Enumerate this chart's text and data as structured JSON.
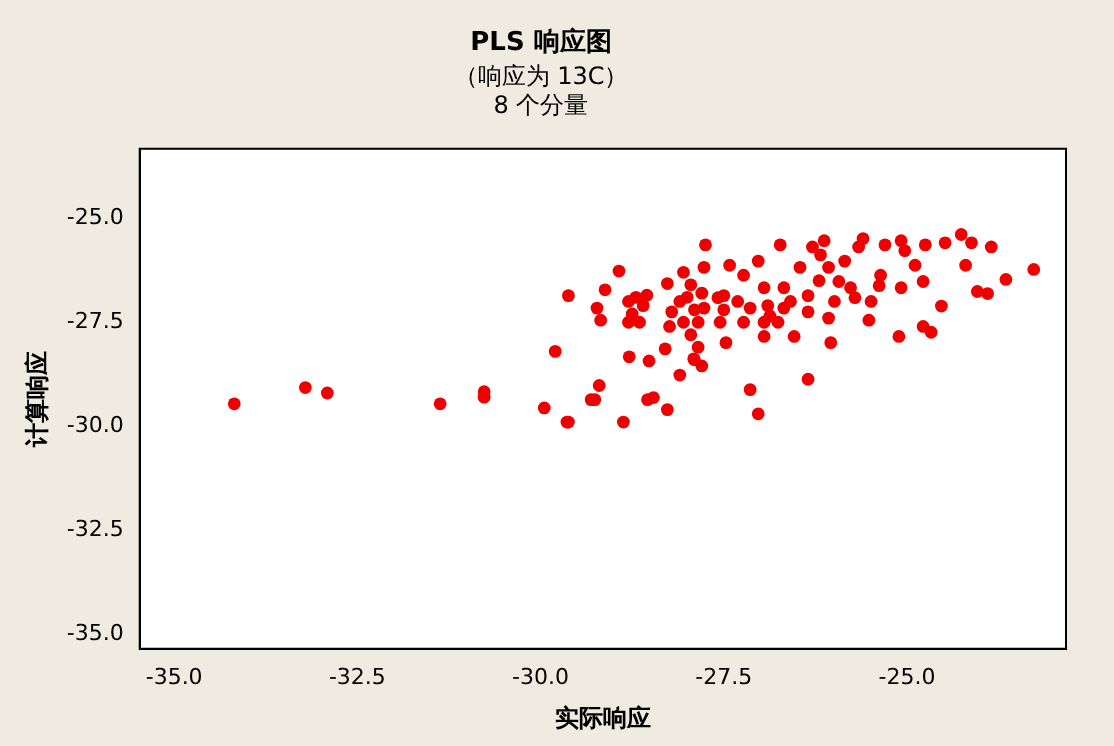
{
  "chart_data": {
    "type": "scatter",
    "title": "PLS 响应图",
    "subtitle": "（响应为 13C）\n8 个分量",
    "xlabel": "实际响应",
    "ylabel": "计算响应",
    "xlim": [
      -35.47,
      -22.83
    ],
    "ylim": [
      -35.35,
      -23.33
    ],
    "xticks": [
      {
        "value": -35,
        "label": "-35.0"
      },
      -32.5,
      {
        "value": -30,
        "label": "-30.0"
      },
      -27.5,
      {
        "value": -25,
        "label": "-25.0"
      }
    ],
    "yticks": [
      {
        "value": -35,
        "label": "-35.0"
      },
      -32.5,
      {
        "value": -30,
        "label": "-30.0"
      },
      -27.5,
      {
        "value": -25,
        "label": "-25.0"
      }
    ],
    "grid": false,
    "legend": false,
    "marker": "circle",
    "series": [
      {
        "color": "#ee0000",
        "x": [
          -34.18,
          -33.21,
          -32.91,
          -31.37,
          -30.77,
          -30.77,
          -29.95,
          -29.64,
          -29.8,
          -29.62,
          -29.62,
          -28.87,
          -29.2,
          -29.31,
          -29.26,
          -28.54,
          -28.46,
          -28.27,
          -28.79,
          -28.52,
          -28.1,
          -28.93,
          -29.12,
          -29.23,
          -29.18,
          -28.8,
          -28.7,
          -28.6,
          -28.75,
          -28.55,
          -28.65,
          -28.8,
          -28.27,
          -28.21,
          -28.3,
          -28.24,
          -28.05,
          -27.95,
          -28.0,
          -27.9,
          -28.05,
          -27.95,
          -27.85,
          -27.9,
          -27.8,
          -28.1,
          -27.8,
          -27.85,
          -27.75,
          -27.77,
          -27.91,
          -27.5,
          -27.5,
          -27.55,
          -27.47,
          -27.42,
          -27.23,
          -27.03,
          -26.73,
          -26.95,
          -26.9,
          -26.95,
          -26.76,
          -26.68,
          -26.46,
          -26.54,
          -26.95,
          -27.23,
          -27.14,
          -27.03,
          -26.35,
          -26.07,
          -26.04,
          -25.99,
          -26.29,
          -26.13,
          -26.2,
          -26.35,
          -27.77,
          -27.58,
          -27.31,
          -27.14,
          -26.87,
          -26.68,
          -26.59,
          -26.18,
          -26.07,
          -25.93,
          -25.77,
          -25.71,
          -25.66,
          -25.6,
          -25.49,
          -25.36,
          -25.3,
          -25.08,
          -25.03,
          -25.08,
          -24.89,
          -24.75,
          -24.78,
          -24.53,
          -24.48,
          -24.26,
          -24.12,
          -24.2,
          -23.85,
          -24.04,
          -23.9,
          -23.65,
          -23.27,
          -24.78,
          -24.67,
          -25.11,
          -25.52,
          -26.35,
          -25.38,
          -25.85
        ],
        "values": [
          -29.46,
          -29.07,
          -29.2,
          -29.46,
          -29.17,
          -29.3,
          -29.56,
          -29.9,
          -28.2,
          -26.86,
          -29.9,
          -29.9,
          -29.02,
          -29.36,
          -29.36,
          -29.36,
          -29.31,
          -29.6,
          -28.33,
          -28.43,
          -28.77,
          -26.27,
          -26.72,
          -27.16,
          -27.45,
          -27.0,
          -26.9,
          -27.1,
          -27.3,
          -26.85,
          -27.5,
          -27.5,
          -26.57,
          -27.25,
          -28.14,
          -27.6,
          -26.3,
          -26.6,
          -26.9,
          -27.2,
          -27.5,
          -27.8,
          -28.1,
          -28.4,
          -28.55,
          -27.0,
          -26.8,
          -27.5,
          -25.64,
          -26.18,
          -28.38,
          -26.86,
          -27.2,
          -27.5,
          -27.99,
          -26.13,
          -26.37,
          -26.03,
          -25.64,
          -26.67,
          -27.1,
          -27.5,
          -27.5,
          -27.16,
          -26.18,
          -27.84,
          -27.84,
          -27.5,
          -29.12,
          -29.7,
          -28.87,
          -27.4,
          -27.99,
          -27.0,
          -25.69,
          -25.54,
          -26.5,
          -26.86,
          -27.16,
          -26.91,
          -27.0,
          -27.16,
          -27.35,
          -26.67,
          -27.0,
          -25.88,
          -26.18,
          -26.52,
          -26.67,
          -26.91,
          -25.69,
          -25.49,
          -27.0,
          -26.37,
          -25.64,
          -25.54,
          -25.78,
          -26.67,
          -26.13,
          -25.64,
          -26.52,
          -27.11,
          -25.59,
          -25.39,
          -25.59,
          -26.13,
          -25.69,
          -26.76,
          -26.81,
          -26.47,
          -26.23,
          -27.6,
          -27.74,
          -27.84,
          -27.45,
          -27.25,
          -26.62,
          -26.03
        ]
      }
    ]
  }
}
